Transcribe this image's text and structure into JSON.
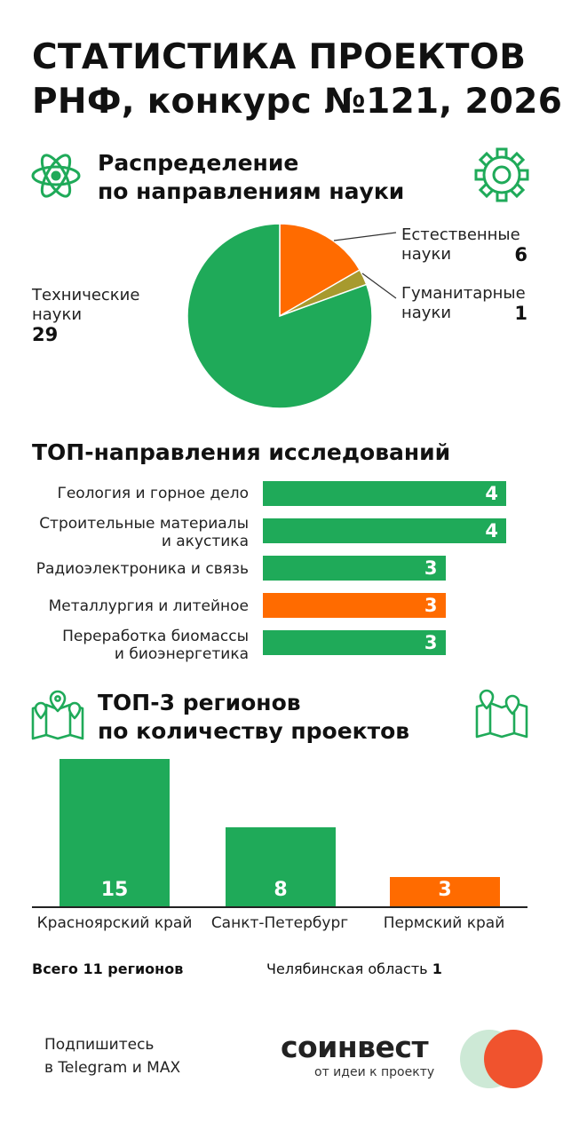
{
  "title": {
    "line1": "СТАТИСТИКА ПРОЕКТОВ",
    "line2": "РНФ, конкурс №121, 2026"
  },
  "section1": {
    "title_line1": "Распределение",
    "title_line2": "по направлениям науки",
    "left_icon": "atom-icon",
    "right_icon": "gear-icon"
  },
  "section2": {
    "title": "ТОП-направления исследований"
  },
  "section3": {
    "title_line1": "ТОП-3 регионов",
    "title_line2": "по количеству проектов",
    "left_icon": "map-pins-icon",
    "right_icon": "map-pins-icon"
  },
  "colors": {
    "green": "#1FAA59",
    "orange": "#FF6B00",
    "olive": "#A79A2E"
  },
  "chart_data": [
    {
      "type": "pie",
      "slices": [
        {
          "label_line1": "Технические",
          "label_line2": "науки",
          "value": 29,
          "color": "#1FAA59"
        },
        {
          "label_line1": "Естественные",
          "label_line2": "науки",
          "value": 6,
          "color": "#FF6B00"
        },
        {
          "label_line1": "Гуманитарные",
          "label_line2": "науки",
          "value": 1,
          "color": "#A79A2E"
        }
      ]
    },
    {
      "type": "bar",
      "orientation": "horizontal",
      "xlim": [
        0,
        4
      ],
      "bars": [
        {
          "label_line1": "Геология и горное дело",
          "label_line2": "",
          "value": 4,
          "color": "#1FAA59"
        },
        {
          "label_line1": "Строительные материалы",
          "label_line2": "и акустика",
          "value": 4,
          "color": "#1FAA59"
        },
        {
          "label_line1": "Радиоэлектроника и связь",
          "label_line2": "",
          "value": 3,
          "color": "#1FAA59"
        },
        {
          "label_line1": "Металлургия и литейное",
          "label_line2": "",
          "value": 3,
          "color": "#FF6B00"
        },
        {
          "label_line1": "Переработка биомассы",
          "label_line2": "и биоэнергетика",
          "value": 3,
          "color": "#1FAA59"
        }
      ]
    },
    {
      "type": "bar",
      "orientation": "vertical",
      "ylim": [
        0,
        15
      ],
      "categories": [
        "Красноярский край",
        "Санкт-Петербург",
        "Пермский край"
      ],
      "values": [
        15,
        8,
        3
      ],
      "colors": [
        "#1FAA59",
        "#1FAA59",
        "#FF6B00"
      ]
    }
  ],
  "totals": {
    "regions_total": "Всего 11 регионов",
    "extra_region_name": "Челябинская область",
    "extra_region_value": "1"
  },
  "footer": {
    "subscribe_line1": "Подпишитесь",
    "subscribe_line2": "в Telegram и MAX",
    "logo_text": "соинвест",
    "logo_tagline": "от идеи к проекту"
  }
}
